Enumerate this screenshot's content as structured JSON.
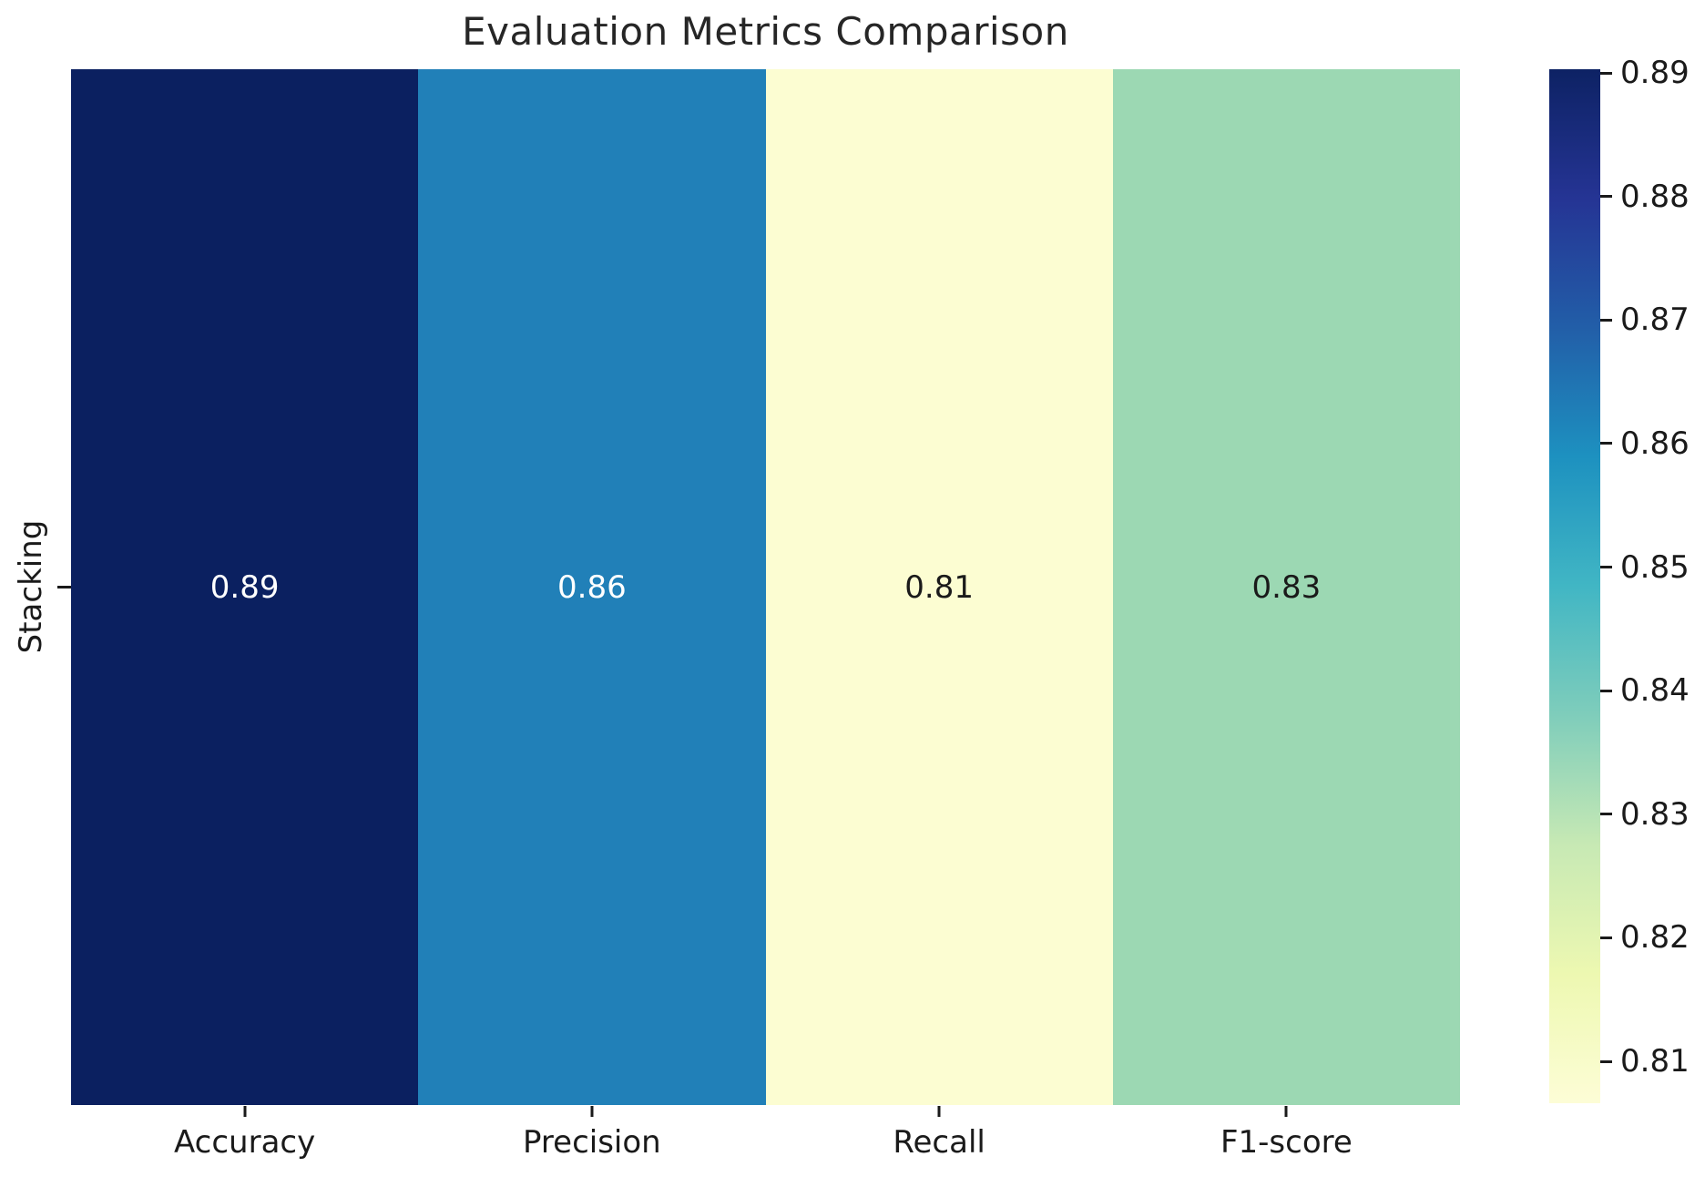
{
  "chart_data": {
    "type": "heatmap",
    "title": "Evaluation Metrics Comparison",
    "x_tick_labels": [
      "Accuracy",
      "Precision",
      "Recall",
      "F1-score"
    ],
    "y_tick_labels": [
      "Stacking"
    ],
    "series": [
      {
        "name": "Stacking",
        "values": [
          0.89,
          0.86,
          0.81,
          0.83
        ]
      }
    ],
    "cell_labels": [
      [
        "0.89",
        "0.86",
        "0.81",
        "0.83"
      ]
    ],
    "cell_colors": [
      [
        "#0b2060",
        "#2180b8",
        "#fcfdd2",
        "#9cd8b3"
      ]
    ],
    "cell_text_colors": [
      [
        "#ffffff",
        "#ffffff",
        "#1a1a1a",
        "#1a1a1a"
      ]
    ],
    "colormap": "YlGnBu",
    "grid": false,
    "annotations": true,
    "colorbar": {
      "position": "right",
      "vmin": 0.81,
      "vmax": 0.89,
      "ticks": [
        "0.89",
        "0.88",
        "0.87",
        "0.86",
        "0.85",
        "0.84",
        "0.83",
        "0.82",
        "0.81"
      ],
      "gradient_stops_top_to_bottom": [
        "#0d2264",
        "#253494",
        "#225ea8",
        "#1d91c0",
        "#41b6c4",
        "#7fcdbb",
        "#c7e9b4",
        "#edf8b1",
        "#fdfdd6"
      ]
    }
  }
}
